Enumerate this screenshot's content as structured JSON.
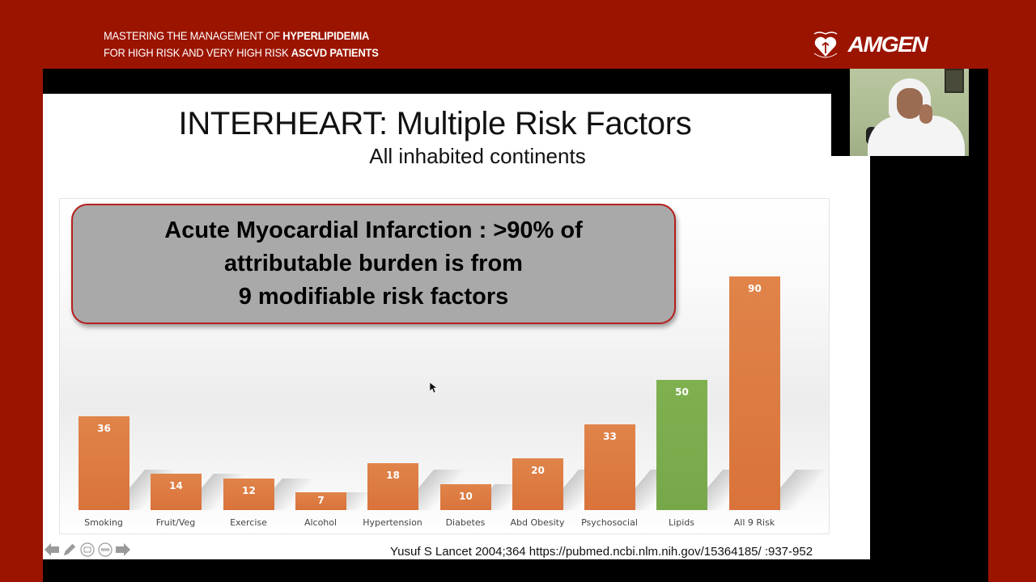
{
  "header": {
    "line1_regular": "MASTERING THE MANAGEMENT OF ",
    "line1_bold": "HYPERLIPIDEMIA",
    "line2_regular": "FOR HIGH RISK AND VERY HIGH RISK ",
    "line2_bold": "ASCVD PATIENTS",
    "logo_brand": "AMGEN",
    "logo_heart": "heart-society-logo"
  },
  "slide": {
    "title": "INTERHEART: Multiple Risk Factors",
    "subtitle": "All inhabited continents",
    "callout": {
      "line1": "Acute Myocardial Infarction : >90% of",
      "line2": "attributable burden is from",
      "line3": "9 modifiable risk factors"
    },
    "citation": "Yusuf S Lancet 2004;364 https://pubmed.ncbi.nlm.nih.gov/15364185/ :937-952"
  },
  "colors": {
    "background": "#9b1400",
    "bar_orange": "#dd7b42",
    "bar_green": "#7aac4c",
    "callout_border": "#b51e1e",
    "callout_fill": "#a9a9a9"
  },
  "nav_controls": {
    "icons": [
      "arrow-left-icon",
      "pen-icon",
      "slides-icon",
      "more-icon",
      "arrow-right-icon"
    ]
  },
  "chart_data": {
    "type": "bar",
    "title": "INTERHEART: Multiple Risk Factors",
    "subtitle": "All inhabited continents",
    "annotation": "Acute Myocardial Infarction : >90% of attributable burden is from 9 modifiable risk factors",
    "xlabel": "",
    "ylabel": "",
    "categories": [
      "Smoking",
      "Fruit/Veg",
      "Exercise",
      "Alcohol",
      "Hypertension",
      "Diabetes",
      "Abd Obesity",
      "Psychosocial",
      "Lipids",
      "All 9 Risk"
    ],
    "values": [
      36,
      14,
      12,
      7,
      18,
      10,
      20,
      33,
      50,
      90
    ],
    "bar_colors": [
      "#dd7b42",
      "#dd7b42",
      "#dd7b42",
      "#dd7b42",
      "#dd7b42",
      "#dd7b42",
      "#dd7b42",
      "#dd7b42",
      "#7aac4c",
      "#dd7b42"
    ],
    "data_labels": true,
    "grid": false,
    "ylim": [
      0,
      90
    ]
  }
}
